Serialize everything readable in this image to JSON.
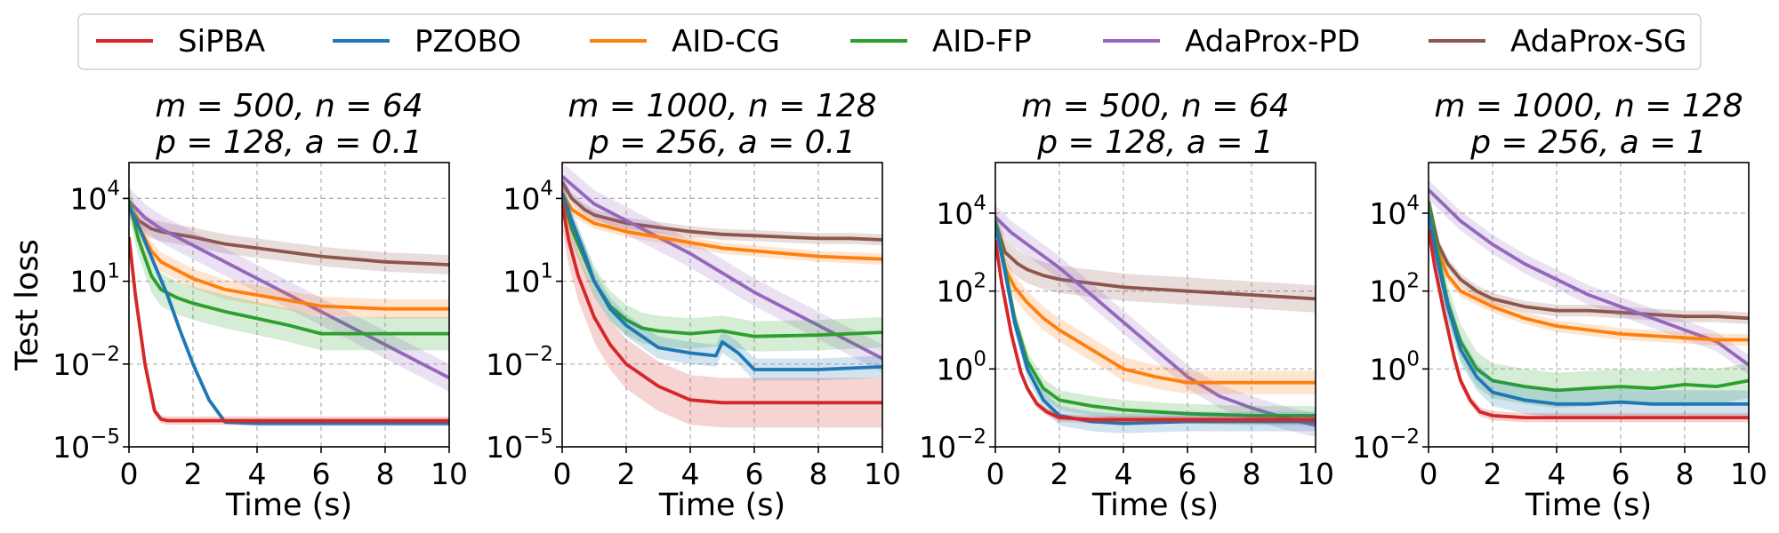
{
  "chart_data": {
    "type": "line",
    "legend": {
      "placement": "top",
      "entries": [
        {
          "name": "SiPBA",
          "color": "#d62728"
        },
        {
          "name": "PZOBO",
          "color": "#1f77b4"
        },
        {
          "name": "AID-CG",
          "color": "#ff7f0e"
        },
        {
          "name": "AID-FP",
          "color": "#2ca02c"
        },
        {
          "name": "AdaProx-PD",
          "color": "#9467bd"
        },
        {
          "name": "AdaProx-SG",
          "color": "#8c564b"
        }
      ]
    },
    "panels": [
      {
        "title_line1": "m = 500, n = 64",
        "title_line2": "p = 128, a = 0.1",
        "xlabel": "Time (s)",
        "ylabel": "Test loss",
        "xlim": [
          0,
          10
        ],
        "ylim_log10": [
          -5,
          5.3
        ],
        "xticks": [
          "0",
          "2",
          "4",
          "6",
          "8",
          "10"
        ],
        "yticks": [
          {
            "exp": 4,
            "label": "10",
            "sup": "4"
          },
          {
            "exp": 1,
            "label": "10",
            "sup": "1"
          },
          {
            "exp": -2,
            "label": "10",
            "sup": "−2"
          },
          {
            "exp": -5,
            "label": "10",
            "sup": "−5"
          }
        ],
        "series": [
          {
            "name": "SiPBA",
            "x": [
              0,
              0.2,
              0.5,
              0.8,
              1.0,
              1.2,
              2,
              4,
              6,
              8,
              10
            ],
            "log10y": [
              2.6,
              0.5,
              -2.0,
              -3.7,
              -4.0,
              -4.05,
              -4.05,
              -4.05,
              -4.05,
              -4.05,
              -4.05
            ],
            "band": 0.15
          },
          {
            "name": "PZOBO",
            "x": [
              0,
              0.3,
              0.8,
              1.2,
              1.6,
              2.0,
              2.5,
              3.0,
              4,
              6,
              8,
              10
            ],
            "log10y": [
              3.7,
              3.0,
              1.6,
              0.5,
              -0.8,
              -2.0,
              -3.3,
              -4.1,
              -4.15,
              -4.15,
              -4.15,
              -4.15
            ],
            "band": 0.1
          },
          {
            "name": "AID-CG",
            "x": [
              0,
              0.3,
              0.7,
              1.0,
              1.5,
              2,
              3,
              4,
              5,
              6,
              8,
              10
            ],
            "log10y": [
              3.8,
              3.0,
              2.1,
              1.7,
              1.4,
              1.1,
              0.7,
              0.5,
              0.3,
              0.1,
              0.0,
              0.0
            ],
            "band": 0.35
          },
          {
            "name": "AID-FP",
            "x": [
              0,
              0.3,
              0.7,
              1.0,
              1.5,
              2,
              3,
              4,
              5,
              6,
              8,
              10
            ],
            "log10y": [
              3.9,
              2.5,
              1.2,
              0.7,
              0.4,
              0.2,
              -0.1,
              -0.35,
              -0.6,
              -0.9,
              -0.9,
              -0.9
            ],
            "band": 0.6
          },
          {
            "name": "AdaProx-PD",
            "x": [
              0,
              0.5,
              1,
              2,
              3,
              4,
              5,
              6,
              7,
              8,
              9,
              10
            ],
            "log10y": [
              3.9,
              3.3,
              2.9,
              2.3,
              1.7,
              1.1,
              0.5,
              -0.1,
              -0.7,
              -1.3,
              -1.9,
              -2.5
            ],
            "band": 0.5
          },
          {
            "name": "AdaProx-SG",
            "x": [
              0,
              0.3,
              0.7,
              1,
              2,
              3,
              4,
              5,
              6,
              7,
              8,
              9,
              10
            ],
            "log10y": [
              3.7,
              3.2,
              2.9,
              2.8,
              2.6,
              2.35,
              2.2,
              2.05,
              1.9,
              1.8,
              1.7,
              1.65,
              1.6
            ],
            "band": 0.35
          }
        ]
      },
      {
        "title_line1": "m = 1000, n = 128",
        "title_line2": "p = 256, a = 0.1",
        "xlabel": "Time (s)",
        "ylabel": "",
        "xlim": [
          0,
          10
        ],
        "ylim_log10": [
          -5,
          5.3
        ],
        "xticks": [
          "0",
          "2",
          "4",
          "6",
          "8",
          "10"
        ],
        "yticks": [
          {
            "exp": 4,
            "label": "10",
            "sup": "4"
          },
          {
            "exp": 1,
            "label": "10",
            "sup": "1"
          },
          {
            "exp": -2,
            "label": "10",
            "sup": "−2"
          },
          {
            "exp": -5,
            "label": "10",
            "sup": "−5"
          }
        ],
        "series": [
          {
            "name": "SiPBA",
            "x": [
              0,
              0.2,
              0.5,
              1.0,
              1.5,
              2,
              3,
              4,
              5,
              6,
              8,
              10
            ],
            "log10y": [
              3.8,
              2.5,
              1.2,
              -0.3,
              -1.3,
              -2.0,
              -2.8,
              -3.3,
              -3.4,
              -3.4,
              -3.4,
              -3.4
            ],
            "band": 0.9
          },
          {
            "name": "PZOBO",
            "x": [
              0,
              0.3,
              0.7,
              1,
              1.5,
              2,
              2.5,
              3,
              4,
              4.8,
              5.0,
              5.5,
              6,
              8,
              10
            ],
            "log10y": [
              4.2,
              3.2,
              2.0,
              1.0,
              0.0,
              -0.6,
              -1.0,
              -1.4,
              -1.6,
              -1.7,
              -1.2,
              -1.6,
              -2.2,
              -2.2,
              -2.1
            ],
            "band": 0.4
          },
          {
            "name": "AID-CG",
            "x": [
              0,
              0.3,
              0.7,
              1,
              2,
              3,
              4,
              5,
              6,
              7,
              8,
              9,
              10
            ],
            "log10y": [
              4.2,
              3.6,
              3.3,
              3.1,
              2.8,
              2.6,
              2.4,
              2.2,
              2.1,
              2.0,
              1.9,
              1.85,
              1.8
            ],
            "band": 0.2
          },
          {
            "name": "AID-FP",
            "x": [
              0,
              0.3,
              0.7,
              1,
              1.5,
              2,
              2.5,
              3,
              4,
              5,
              6,
              8,
              10
            ],
            "log10y": [
              4.1,
              2.9,
              1.8,
              1.0,
              0.1,
              -0.4,
              -0.7,
              -0.8,
              -0.9,
              -0.8,
              -1.0,
              -0.95,
              -0.85
            ],
            "band": 0.55
          },
          {
            "name": "AdaProx-PD",
            "x": [
              0,
              0.5,
              1,
              2,
              3,
              4,
              5,
              6,
              7,
              8,
              9,
              10
            ],
            "log10y": [
              4.8,
              4.3,
              3.8,
              3.2,
              2.6,
              2.0,
              1.3,
              0.6,
              0.0,
              -0.6,
              -1.2,
              -1.8
            ],
            "band": 0.5
          },
          {
            "name": "AdaProx-SG",
            "x": [
              0,
              0.3,
              0.7,
              1,
              2,
              3,
              4,
              5,
              6,
              7,
              8,
              9,
              10
            ],
            "log10y": [
              4.6,
              4.0,
              3.6,
              3.4,
              3.1,
              2.95,
              2.8,
              2.7,
              2.65,
              2.6,
              2.55,
              2.55,
              2.5
            ],
            "band": 0.2
          }
        ]
      },
      {
        "title_line1": "m = 500, n = 64",
        "title_line2": "p = 128, a = 1",
        "xlabel": "Time (s)",
        "ylabel": "",
        "xlim": [
          0,
          10
        ],
        "ylim_log10": [
          -2,
          5.3
        ],
        "xticks": [
          "0",
          "2",
          "4",
          "6",
          "8",
          "10"
        ],
        "yticks": [
          {
            "exp": 4,
            "label": "10",
            "sup": "4"
          },
          {
            "exp": 2,
            "label": "10",
            "sup": "2"
          },
          {
            "exp": 0,
            "label": "10",
            "sup": "0"
          },
          {
            "exp": -2,
            "label": "10",
            "sup": "−2"
          }
        ],
        "series": [
          {
            "name": "SiPBA",
            "x": [
              0,
              0.2,
              0.5,
              0.8,
              1.0,
              1.3,
              1.6,
              2,
              3,
              4,
              6,
              8,
              10
            ],
            "log10y": [
              3.3,
              2.2,
              0.9,
              -0.1,
              -0.5,
              -0.9,
              -1.1,
              -1.25,
              -1.3,
              -1.3,
              -1.3,
              -1.3,
              -1.3
            ],
            "band": 0.1
          },
          {
            "name": "PZOBO",
            "x": [
              0,
              0.3,
              0.6,
              1,
              1.5,
              2,
              3,
              4,
              6,
              8,
              10
            ],
            "log10y": [
              3.7,
              2.5,
              1.2,
              0.0,
              -0.8,
              -1.2,
              -1.35,
              -1.4,
              -1.35,
              -1.35,
              -1.35
            ],
            "band": 0.25
          },
          {
            "name": "AID-CG",
            "x": [
              0,
              0.3,
              0.6,
              1,
              1.5,
              2,
              3,
              4,
              5,
              6,
              8,
              10
            ],
            "log10y": [
              3.7,
              2.6,
              2.1,
              1.7,
              1.3,
              1.0,
              0.5,
              0.0,
              -0.2,
              -0.35,
              -0.35,
              -0.35
            ],
            "band": 0.3
          },
          {
            "name": "AID-FP",
            "x": [
              0,
              0.3,
              0.6,
              1,
              1.5,
              2,
              3,
              4,
              6,
              8,
              10
            ],
            "log10y": [
              3.8,
              2.6,
              1.3,
              0.2,
              -0.5,
              -0.8,
              -0.95,
              -1.05,
              -1.15,
              -1.2,
              -1.2
            ],
            "band": 0.25
          },
          {
            "name": "AdaProx-PD",
            "x": [
              0,
              0.5,
              1,
              2,
              3,
              4,
              5,
              6,
              7,
              8,
              9,
              10
            ],
            "log10y": [
              3.9,
              3.5,
              3.2,
              2.6,
              1.9,
              1.2,
              0.5,
              -0.2,
              -0.7,
              -1.0,
              -1.25,
              -1.45
            ],
            "band": 0.3
          },
          {
            "name": "AdaProx-SG",
            "x": [
              0,
              0.3,
              0.7,
              1,
              1.5,
              2,
              3,
              4,
              5,
              6,
              7,
              8,
              9,
              10
            ],
            "log10y": [
              3.8,
              3.0,
              2.7,
              2.55,
              2.4,
              2.3,
              2.2,
              2.1,
              2.05,
              2.0,
              1.95,
              1.9,
              1.85,
              1.8
            ],
            "band": 0.35
          }
        ]
      },
      {
        "title_line1": "m = 1000, n = 128",
        "title_line2": "p = 256, a = 1",
        "xlabel": "Time (s)",
        "ylabel": "",
        "xlim": [
          0,
          10
        ],
        "ylim_log10": [
          -2,
          5.3
        ],
        "xticks": [
          "0",
          "2",
          "4",
          "6",
          "8",
          "10"
        ],
        "yticks": [
          {
            "exp": 4,
            "label": "10",
            "sup": "4"
          },
          {
            "exp": 2,
            "label": "10",
            "sup": "2"
          },
          {
            "exp": 0,
            "label": "10",
            "sup": "0"
          },
          {
            "exp": -2,
            "label": "10",
            "sup": "−2"
          }
        ],
        "series": [
          {
            "name": "SiPBA",
            "x": [
              0,
              0.2,
              0.5,
              0.8,
              1.0,
              1.3,
              1.6,
              2,
              3,
              4,
              6,
              8,
              10
            ],
            "log10y": [
              3.6,
              2.6,
              1.4,
              0.3,
              -0.3,
              -0.8,
              -1.1,
              -1.2,
              -1.25,
              -1.25,
              -1.25,
              -1.25,
              -1.25
            ],
            "band": 0.12
          },
          {
            "name": "PZOBO",
            "x": [
              0,
              0.3,
              0.6,
              1,
              1.5,
              2,
              3,
              4,
              5,
              6,
              7,
              8,
              10
            ],
            "log10y": [
              4.0,
              2.7,
              1.6,
              0.5,
              -0.2,
              -0.6,
              -0.8,
              -0.9,
              -0.9,
              -0.85,
              -0.9,
              -0.9,
              -0.9
            ],
            "band": 0.35
          },
          {
            "name": "AID-CG",
            "x": [
              0,
              0.3,
              0.6,
              1,
              2,
              3,
              4,
              5,
              6,
              7,
              8,
              9,
              10
            ],
            "log10y": [
              4.0,
              3.0,
              2.4,
              2.0,
              1.6,
              1.3,
              1.1,
              1.0,
              0.9,
              0.85,
              0.8,
              0.75,
              0.75
            ],
            "band": 0.15
          },
          {
            "name": "AID-FP",
            "x": [
              0,
              0.3,
              0.6,
              1,
              1.5,
              2,
              3,
              4,
              5,
              6,
              7,
              8,
              9,
              10
            ],
            "log10y": [
              4.2,
              2.9,
              1.7,
              0.7,
              0.0,
              -0.3,
              -0.45,
              -0.55,
              -0.5,
              -0.45,
              -0.5,
              -0.4,
              -0.45,
              -0.3
            ],
            "band": 0.45
          },
          {
            "name": "AdaProx-PD",
            "x": [
              0,
              0.5,
              1,
              2,
              3,
              4,
              5,
              6,
              7,
              8,
              9,
              10
            ],
            "log10y": [
              4.6,
              4.2,
              3.8,
              3.2,
              2.7,
              2.3,
              1.9,
              1.6,
              1.3,
              1.0,
              0.7,
              0.1
            ],
            "band": 0.25
          },
          {
            "name": "AdaProx-SG",
            "x": [
              0,
              0.3,
              0.6,
              1,
              1.5,
              2,
              3,
              4,
              5,
              6,
              7,
              8,
              9,
              10
            ],
            "log10y": [
              4.3,
              3.2,
              2.7,
              2.3,
              2.0,
              1.8,
              1.6,
              1.5,
              1.5,
              1.45,
              1.4,
              1.35,
              1.35,
              1.3
            ],
            "band": 0.15
          }
        ]
      }
    ]
  }
}
